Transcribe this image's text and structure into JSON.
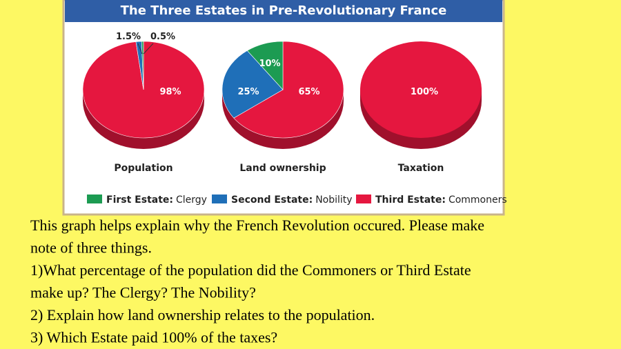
{
  "figure": {
    "title": "The Three Estates in Pre-Revolutionary France",
    "legend": [
      {
        "label": "First Estate:",
        "detail": "Clergy",
        "color": "#1c9b52"
      },
      {
        "label": "Second Estate:",
        "detail": "Nobility",
        "color": "#1f6fb8"
      },
      {
        "label": "Third Estate:",
        "detail": "Commoners",
        "color": "#e5173f"
      }
    ]
  },
  "chart_data": [
    {
      "type": "pie",
      "title": "Population",
      "values": [
        0.5,
        1.5,
        98
      ],
      "value_labels": [
        "0.5%",
        "1.5%",
        "98%"
      ]
    },
    {
      "type": "pie",
      "title": "Land ownership",
      "values": [
        10,
        25,
        65
      ],
      "value_labels": [
        "10%",
        "25%",
        "65%"
      ]
    },
    {
      "type": "pie",
      "title": "Taxation",
      "values": [
        0,
        0,
        100
      ],
      "value_labels": [
        null,
        null,
        "100%"
      ]
    }
  ],
  "text": [
    "This graph helps explain why the French Revolution occured.  Please make",
    "note of three things.",
    "1)What percentage of the population did the Commoners or Third Estate",
    "make up?  The Clergy?  The Nobility?",
    "2)  Explain how land ownership relates to the population.",
    "3) Which Estate paid 100% of the taxes?"
  ]
}
